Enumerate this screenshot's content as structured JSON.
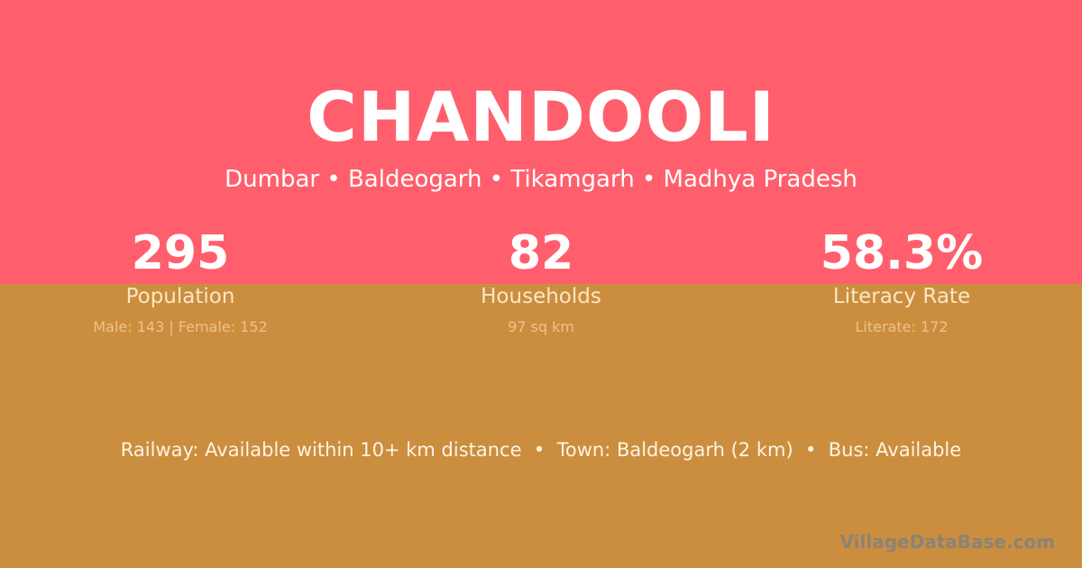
{
  "village": {
    "name": "CHANDOOLI",
    "location": "Dumbar • Baldeogarh • Tikamgarh • Madhya Pradesh"
  },
  "stats": [
    {
      "value": "295",
      "label": "Population",
      "detail": "Male: 143 | Female: 152"
    },
    {
      "value": "82",
      "label": "Households",
      "detail": "97 sq km"
    },
    {
      "value": "58.3%",
      "label": "Literacy Rate",
      "detail": "Literate: 172"
    }
  ],
  "connectivity": "Railway: Available within 10+ km distance  •  Town: Baldeogarh (2 km)  •  Bus: Available",
  "brand": "VillageDataBase.com",
  "colors": {
    "top": "#ff5f6d",
    "bottom": "#cb8e3e"
  }
}
